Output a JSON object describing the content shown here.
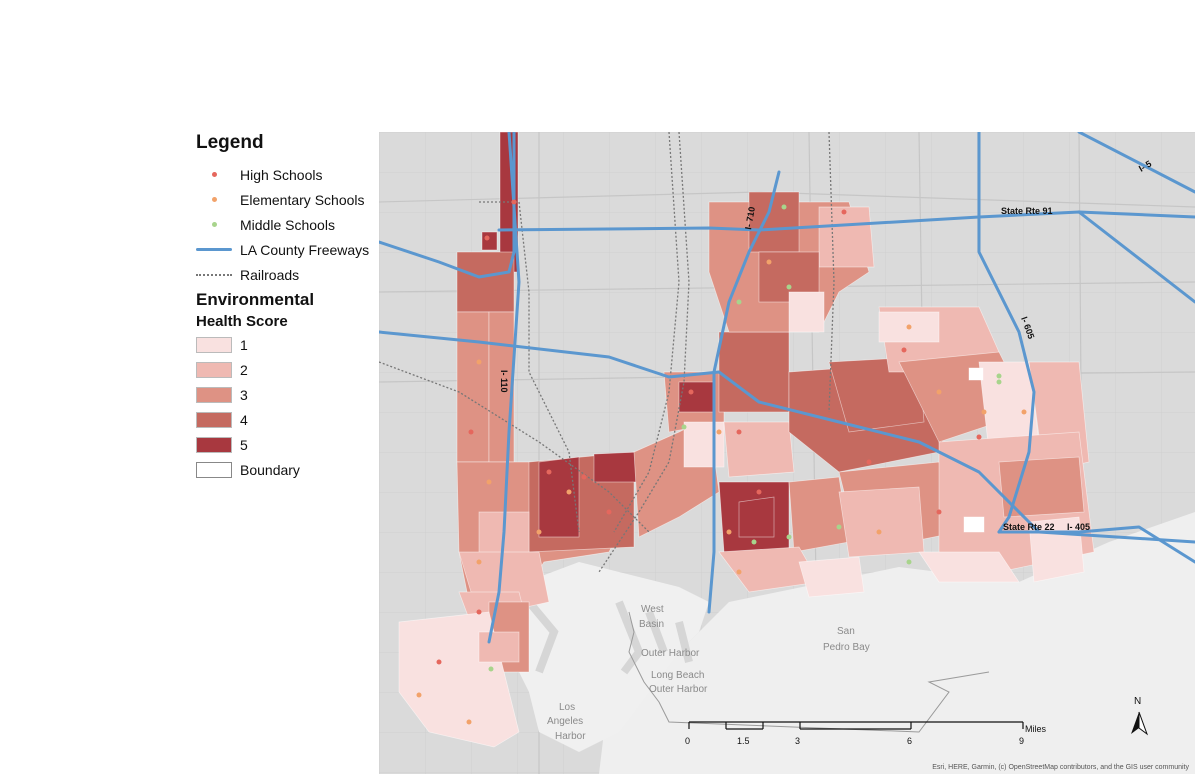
{
  "legend": {
    "title": "Legend",
    "items": [
      {
        "label": "High Schools",
        "color": "#e5675d"
      },
      {
        "label": "Elementary Schools",
        "color": "#f2a26a"
      },
      {
        "label": "Middle Schools",
        "color": "#a8d48c"
      },
      {
        "label": "LA County Freeways",
        "color": "#5b97cf"
      },
      {
        "label": "Railroads",
        "color": "#777777"
      }
    ],
    "score_title": "Environmental",
    "score_subtitle": "Health Score",
    "classes": [
      {
        "label": "1",
        "color": "#f9e1e0"
      },
      {
        "label": "2",
        "color": "#efb9b2"
      },
      {
        "label": "3",
        "color": "#de9284"
      },
      {
        "label": "4",
        "color": "#c56a60"
      },
      {
        "label": "5",
        "color": "#a8383f"
      },
      {
        "label": "Boundary",
        "color": "#ffffff"
      }
    ]
  },
  "freeway_labels": {
    "i5": "I- 5",
    "sr91": "State Rte 91",
    "i710": "I- 710",
    "i605": "I- 605",
    "i110": "I- 110",
    "sr22": "State Rte 22",
    "i405": "I- 405"
  },
  "water_labels": {
    "west_basin_1": "West",
    "west_basin_2": "Basin",
    "outer_harbor": "Outer Harbor",
    "lb_outer_1": "Long Beach",
    "lb_outer_2": "Outer Harbor",
    "san_pedro_1": "San",
    "san_pedro_2": "Pedro Bay",
    "la_harbor_1": "Los",
    "la_harbor_2": "Angeles",
    "la_harbor_3": "Harbor"
  },
  "scale_bar": {
    "ticks": [
      "0",
      "1.5",
      "3",
      "6",
      "9"
    ],
    "unit": "Miles"
  },
  "north_label": "N",
  "attribution": "Esri, HERE, Garmin, (c) OpenStreetMap contributors, and the GIS user community"
}
